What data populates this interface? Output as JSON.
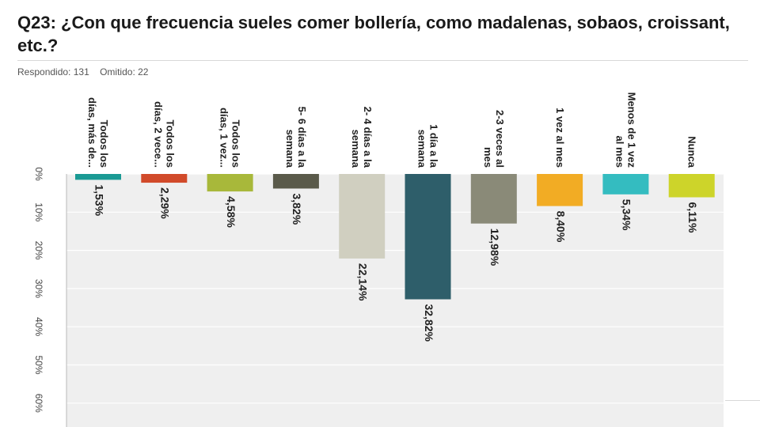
{
  "page": {
    "title": "Q23: ¿Con que frecuencia sueles comer bollería, como madalenas, sobaos, croissant, etc.?",
    "answered": "Respondido: 131",
    "skipped": "Omitido: 22"
  },
  "chart_data": {
    "type": "bar",
    "orientation": "vertical-downward",
    "categories": [
      "Todos los días, más de...",
      "Todos los días, 2 vece...",
      "Todos los días, 1 vez...",
      "5- 6 días a la semana",
      "2- 4 días a la semana",
      "1 día a la semana",
      "2-3 veces al mes",
      "1 vez al mes",
      "Menos de 1 vez al mes",
      "Nunca"
    ],
    "category_lines": [
      [
        "Todos los",
        "días, más de..."
      ],
      [
        "Todos los",
        "días, 2 vece..."
      ],
      [
        "Todos los",
        "días, 1 vez..."
      ],
      [
        "5- 6 días a la",
        "semana"
      ],
      [
        "2- 4 días a la",
        "semana"
      ],
      [
        "1 día a la",
        "semana"
      ],
      [
        "2-3 veces al",
        "mes"
      ],
      [
        "1 vez al mes"
      ],
      [
        "Menos de 1 vez",
        "al mes"
      ],
      [
        "Nunca"
      ]
    ],
    "values": [
      1.53,
      2.29,
      4.58,
      3.82,
      22.14,
      32.82,
      12.98,
      8.4,
      5.34,
      6.11
    ],
    "value_labels": [
      "1,53%",
      "2,29%",
      "4,58%",
      "3,82%",
      "22,14%",
      "32,82%",
      "12,98%",
      "8,40%",
      "5,34%",
      "6,11%"
    ],
    "colors": [
      "#1a9a94",
      "#d14a2a",
      "#a8b83a",
      "#5a5a4a",
      "#d0cfc0",
      "#2e5e6a",
      "#8a8a78",
      "#f2ac24",
      "#34bcc0",
      "#cdd42a"
    ],
    "axis": {
      "ticks": [
        0,
        10,
        20,
        30,
        40,
        50,
        60
      ],
      "tick_labels": [
        "0%",
        "10%",
        "20%",
        "30%",
        "40%",
        "50%",
        "60%"
      ],
      "range": [
        0,
        60
      ]
    },
    "grid": true,
    "legend": "none"
  }
}
